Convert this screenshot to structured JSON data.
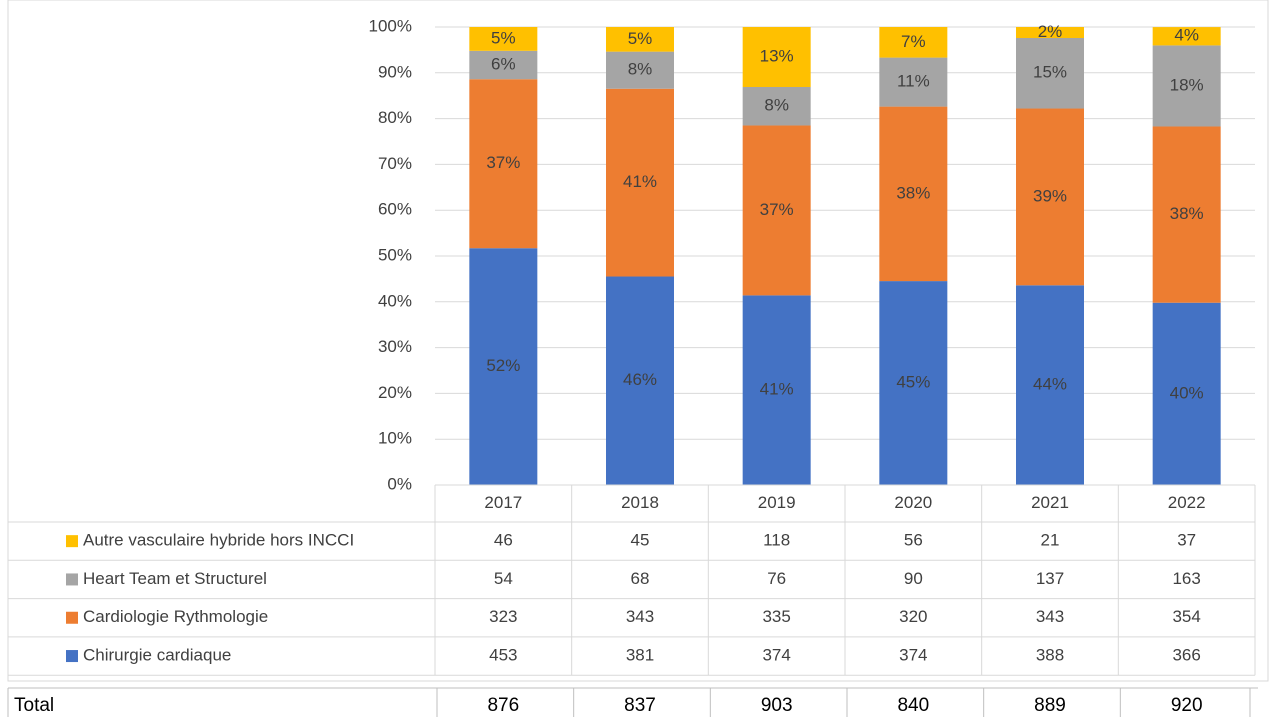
{
  "chart_data": {
    "type": "stacked_bar_100",
    "categories": [
      "2017",
      "2018",
      "2019",
      "2020",
      "2021",
      "2022"
    ],
    "series": [
      {
        "name": "Chirurgie cardiaque",
        "color": "#4472c4",
        "values": [
          51.7,
          45.52,
          41.4,
          44.52,
          43.6,
          39.8
        ],
        "value_labels": [
          "52%",
          "46%",
          "41%",
          "45%",
          "44%",
          "40%"
        ],
        "counts": [
          453,
          381,
          374,
          374,
          388,
          366
        ]
      },
      {
        "name": "Cardiologie Rythmologie",
        "color": "#ed7d31",
        "values": [
          36.9,
          41.0,
          37.1,
          38.1,
          38.6,
          38.48
        ],
        "value_labels": [
          "37%",
          "41%",
          "37%",
          "38%",
          "39%",
          "38%"
        ],
        "counts": [
          323,
          343,
          335,
          320,
          343,
          354
        ]
      },
      {
        "name": "Heart Team et Structurel",
        "color": "#a5a5a5",
        "values": [
          6.2,
          8.1,
          8.4,
          10.7,
          15.4,
          17.7
        ],
        "value_labels": [
          "6%",
          "8%",
          "8%",
          "11%",
          "15%",
          "18%"
        ],
        "counts": [
          54,
          68,
          76,
          90,
          137,
          163
        ]
      },
      {
        "name": "Autre vasculaire hybride hors INCCI",
        "color": "#ffc000",
        "values": [
          5.3,
          5.4,
          13.1,
          6.7,
          2.4,
          4.0
        ],
        "value_labels": [
          "5%",
          "5%",
          "13%",
          "7%",
          "2%",
          "4%"
        ],
        "counts": [
          46,
          45,
          118,
          56,
          21,
          37
        ]
      }
    ],
    "ylim": [
      0,
      100
    ],
    "yticks": [
      {
        "value": 0,
        "label": "0%"
      },
      {
        "value": 10,
        "label": "10%"
      },
      {
        "value": 20,
        "label": "20%"
      },
      {
        "value": 30,
        "label": "30%"
      },
      {
        "value": 40,
        "label": "40%"
      },
      {
        "value": 50,
        "label": "50%"
      },
      {
        "value": 60,
        "label": "60%"
      },
      {
        "value": 70,
        "label": "70%"
      },
      {
        "value": 80,
        "label": "80%"
      },
      {
        "value": 90,
        "label": "90%"
      },
      {
        "value": 100,
        "label": "100%"
      }
    ],
    "grid": true,
    "total_label": "Total",
    "totals": [
      876,
      837,
      903,
      840,
      889,
      920
    ]
  }
}
